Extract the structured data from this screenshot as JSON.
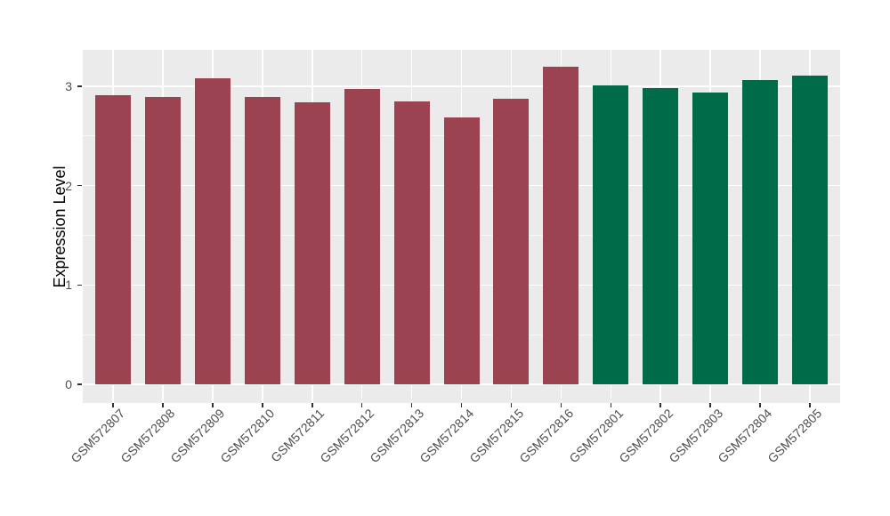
{
  "chart_data": {
    "type": "bar",
    "title": "",
    "xlabel": "",
    "ylabel": "Expression Level",
    "categories": [
      "GSM572807",
      "GSM572808",
      "GSM572809",
      "GSM572810",
      "GSM572811",
      "GSM572812",
      "GSM572813",
      "GSM572814",
      "GSM572815",
      "GSM572816",
      "GSM572801",
      "GSM572802",
      "GSM572803",
      "GSM572804",
      "GSM572805"
    ],
    "values": [
      2.91,
      2.89,
      3.08,
      2.89,
      2.84,
      2.97,
      2.85,
      2.69,
      2.87,
      3.2,
      3.01,
      2.98,
      2.94,
      3.06,
      3.11
    ],
    "bar_group": [
      0,
      0,
      0,
      0,
      0,
      0,
      0,
      0,
      0,
      0,
      1,
      1,
      1,
      1,
      1
    ],
    "group_colors": [
      "#9B4350",
      "#006B48"
    ],
    "yticks": [
      0,
      1,
      2,
      3
    ],
    "ylim": [
      -0.18,
      3.37
    ],
    "grid": true,
    "legend": false,
    "panel_background": "#EBEBEB",
    "gridline_color": "#FFFFFF"
  }
}
